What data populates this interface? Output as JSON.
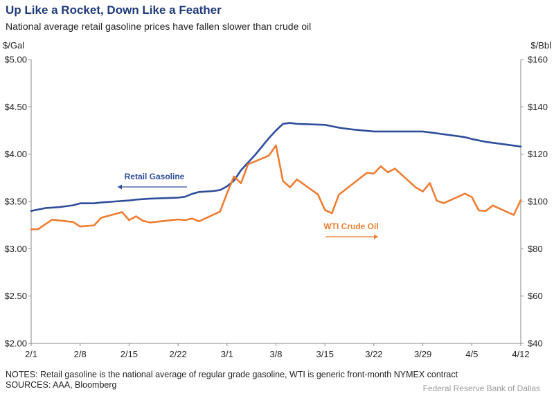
{
  "header": {
    "title": "Up Like a Rocket, Down Like a Feather",
    "subtitle": "National average retail gasoline prices have fallen slower than crude oil"
  },
  "footer": {
    "notes_line1": "NOTES: Retail gasoline is the national average of regular grade gasoline, WTI is generic front-month NYMEX contract",
    "notes_line2": "SOURCES: AAA, Bloomberg",
    "credit": "Federal Reserve Bank of Dallas"
  },
  "chart_data": {
    "type": "line",
    "x_type": "date",
    "x_domain": [
      "2022-02-01",
      "2022-04-12"
    ],
    "x_ticks": [
      {
        "date": "2022-02-01",
        "label": "2/1"
      },
      {
        "date": "2022-02-08",
        "label": "2/8"
      },
      {
        "date": "2022-02-15",
        "label": "2/15"
      },
      {
        "date": "2022-02-22",
        "label": "2/22"
      },
      {
        "date": "2022-03-01",
        "label": "3/1"
      },
      {
        "date": "2022-03-08",
        "label": "3/8"
      },
      {
        "date": "2022-03-15",
        "label": "3/15"
      },
      {
        "date": "2022-03-22",
        "label": "3/22"
      },
      {
        "date": "2022-03-29",
        "label": "3/29"
      },
      {
        "date": "2022-04-05",
        "label": "4/5"
      },
      {
        "date": "2022-04-12",
        "label": "4/12"
      }
    ],
    "y_left": {
      "unit_label": "$/Gal",
      "range": [
        2.0,
        5.0
      ],
      "ticks": [
        {
          "value": 2.0,
          "label": "$2.00"
        },
        {
          "value": 2.5,
          "label": "$2.50"
        },
        {
          "value": 3.0,
          "label": "$3.00"
        },
        {
          "value": 3.5,
          "label": "$3.50"
        },
        {
          "value": 4.0,
          "label": "$4.00"
        },
        {
          "value": 4.5,
          "label": "$4.50"
        },
        {
          "value": 5.0,
          "label": "$5.00"
        }
      ]
    },
    "y_right": {
      "unit_label": "$/Bbl",
      "range": [
        40,
        160
      ],
      "ticks": [
        {
          "value": 40,
          "label": "$40"
        },
        {
          "value": 60,
          "label": "$60"
        },
        {
          "value": 80,
          "label": "$80"
        },
        {
          "value": 100,
          "label": "$100"
        },
        {
          "value": 120,
          "label": "$120"
        },
        {
          "value": 140,
          "label": "$140"
        },
        {
          "value": 160,
          "label": "$160"
        }
      ]
    },
    "grid": false,
    "series": [
      {
        "name": "Retail Gasoline",
        "axis": "left",
        "color": "#2e4d9b",
        "label_arrow": "left",
        "points": [
          [
            "2022-02-01",
            3.4
          ],
          [
            "2022-02-03",
            3.43
          ],
          [
            "2022-02-05",
            3.44
          ],
          [
            "2022-02-07",
            3.46
          ],
          [
            "2022-02-08",
            3.48
          ],
          [
            "2022-02-10",
            3.48
          ],
          [
            "2022-02-11",
            3.49
          ],
          [
            "2022-02-13",
            3.5
          ],
          [
            "2022-02-15",
            3.51
          ],
          [
            "2022-02-16",
            3.52
          ],
          [
            "2022-02-18",
            3.53
          ],
          [
            "2022-02-22",
            3.54
          ],
          [
            "2022-02-23",
            3.55
          ],
          [
            "2022-02-24",
            3.58
          ],
          [
            "2022-02-25",
            3.6
          ],
          [
            "2022-02-27",
            3.61
          ],
          [
            "2022-02-28",
            3.62
          ],
          [
            "2022-03-01",
            3.66
          ],
          [
            "2022-03-02",
            3.72
          ],
          [
            "2022-03-03",
            3.83
          ],
          [
            "2022-03-05",
            3.99
          ],
          [
            "2022-03-07",
            4.17
          ],
          [
            "2022-03-08",
            4.25
          ],
          [
            "2022-03-09",
            4.32
          ],
          [
            "2022-03-10",
            4.33
          ],
          [
            "2022-03-11",
            4.32
          ],
          [
            "2022-03-15",
            4.31
          ],
          [
            "2022-03-17",
            4.28
          ],
          [
            "2022-03-19",
            4.26
          ],
          [
            "2022-03-22",
            4.24
          ],
          [
            "2022-03-23",
            4.24
          ],
          [
            "2022-03-24",
            4.24
          ],
          [
            "2022-03-25",
            4.24
          ],
          [
            "2022-03-29",
            4.24
          ],
          [
            "2022-03-31",
            4.22
          ],
          [
            "2022-04-02",
            4.2
          ],
          [
            "2022-04-04",
            4.18
          ],
          [
            "2022-04-05",
            4.16
          ],
          [
            "2022-04-07",
            4.13
          ],
          [
            "2022-04-09",
            4.11
          ],
          [
            "2022-04-12",
            4.08
          ]
        ]
      },
      {
        "name": "WTI Crude Oil",
        "axis": "right",
        "color": "#ee7d31",
        "label_arrow": "right",
        "points": [
          [
            "2022-02-01",
            88.2
          ],
          [
            "2022-02-02",
            88.3
          ],
          [
            "2022-02-03",
            90.3
          ],
          [
            "2022-02-04",
            92.3
          ],
          [
            "2022-02-07",
            91.3
          ],
          [
            "2022-02-08",
            89.4
          ],
          [
            "2022-02-10",
            89.9
          ],
          [
            "2022-02-11",
            93.1
          ],
          [
            "2022-02-14",
            95.5
          ],
          [
            "2022-02-15",
            92.1
          ],
          [
            "2022-02-16",
            93.7
          ],
          [
            "2022-02-17",
            91.8
          ],
          [
            "2022-02-18",
            91.1
          ],
          [
            "2022-02-22",
            92.4
          ],
          [
            "2022-02-23",
            92.1
          ],
          [
            "2022-02-24",
            92.8
          ],
          [
            "2022-02-25",
            91.6
          ],
          [
            "2022-02-28",
            95.7
          ],
          [
            "2022-03-01",
            103.4
          ],
          [
            "2022-03-02",
            110.6
          ],
          [
            "2022-03-03",
            107.7
          ],
          [
            "2022-03-04",
            115.7
          ],
          [
            "2022-03-07",
            119.4
          ],
          [
            "2022-03-08",
            123.7
          ],
          [
            "2022-03-09",
            108.7
          ],
          [
            "2022-03-10",
            106.0
          ],
          [
            "2022-03-11",
            109.3
          ],
          [
            "2022-03-14",
            103.0
          ],
          [
            "2022-03-15",
            96.4
          ],
          [
            "2022-03-16",
            95.0
          ],
          [
            "2022-03-17",
            102.9
          ],
          [
            "2022-03-21",
            112.1
          ],
          [
            "2022-03-22",
            111.8
          ],
          [
            "2022-03-23",
            114.9
          ],
          [
            "2022-03-24",
            112.3
          ],
          [
            "2022-03-25",
            113.9
          ],
          [
            "2022-03-28",
            105.9
          ],
          [
            "2022-03-29",
            104.2
          ],
          [
            "2022-03-30",
            107.8
          ],
          [
            "2022-03-31",
            100.3
          ],
          [
            "2022-04-01",
            99.3
          ],
          [
            "2022-04-04",
            103.3
          ],
          [
            "2022-04-05",
            101.9
          ],
          [
            "2022-04-06",
            96.2
          ],
          [
            "2022-04-07",
            96.0
          ],
          [
            "2022-04-08",
            98.3
          ],
          [
            "2022-04-11",
            94.3
          ],
          [
            "2022-04-12",
            100.6
          ]
        ]
      }
    ]
  }
}
